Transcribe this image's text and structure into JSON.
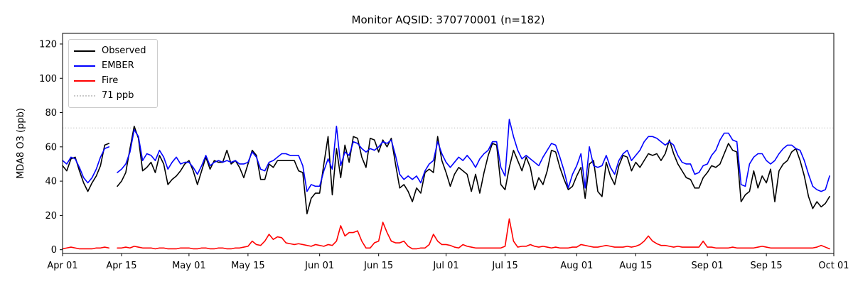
{
  "chart_data": {
    "type": "line",
    "title": "Monitor AQSID: 370770001 (n=182)",
    "xlabel": "",
    "ylabel": "MDA8 O3 (ppb)",
    "x_start_date": "Apr 01",
    "x_end_date": "Sep 30",
    "x_tick_labels": [
      "Apr 01",
      "Apr 15",
      "May 01",
      "May 15",
      "Jun 01",
      "Jun 15",
      "Jul 01",
      "Jul 15",
      "Aug 01",
      "Aug 15",
      "Sep 01",
      "Sep 15",
      "Oct 01"
    ],
    "x_tick_days": [
      0,
      14,
      30,
      44,
      61,
      75,
      91,
      105,
      122,
      136,
      153,
      167,
      183
    ],
    "y_ticks": [
      0,
      20,
      40,
      60,
      80,
      100,
      120
    ],
    "ylim": [
      -2.2,
      126.2
    ],
    "xlim_days": [
      0,
      183
    ],
    "grid": false,
    "legend_position": "upper left",
    "missing_data_day": "Apr 13",
    "threshold": {
      "value": 71,
      "label": "71 ppb",
      "color": "#c9c9c9",
      "style": "dotted"
    },
    "series": [
      {
        "name": "Observed",
        "color": "#000000",
        "values": [
          49,
          46,
          53,
          54,
          46,
          39,
          34,
          39,
          43,
          49,
          61,
          62,
          null,
          37,
          40,
          45,
          59,
          72,
          65,
          46,
          48,
          51,
          45,
          55,
          50,
          38,
          41,
          43,
          46,
          50,
          52,
          46,
          38,
          46,
          54,
          47,
          52,
          51,
          51,
          58,
          50,
          52,
          48,
          42,
          50,
          58,
          55,
          41,
          41,
          50,
          48,
          52,
          52,
          52,
          52,
          52,
          46,
          45,
          21,
          30,
          33,
          33,
          50,
          66,
          32,
          59,
          42,
          61,
          51,
          66,
          65,
          54,
          48,
          65,
          64,
          57,
          64,
          60,
          65,
          50,
          36,
          38,
          34,
          28,
          36,
          33,
          45,
          47,
          45,
          66,
          52,
          45,
          37,
          44,
          48,
          46,
          44,
          34,
          44,
          33,
          45,
          55,
          62,
          61,
          38,
          35,
          48,
          58,
          52,
          46,
          54,
          48,
          35,
          42,
          38,
          46,
          58,
          57,
          48,
          41,
          35,
          37,
          43,
          48,
          30,
          50,
          52,
          34,
          31,
          51,
          43,
          38,
          49,
          55,
          54,
          46,
          51,
          48,
          52,
          56,
          55,
          56,
          52,
          56,
          64,
          56,
          50,
          46,
          42,
          41,
          36,
          36,
          42,
          45,
          49,
          48,
          50,
          56,
          62,
          58,
          57,
          28,
          32,
          34,
          46,
          36,
          43,
          39,
          47,
          28,
          46,
          50,
          52,
          57,
          59,
          52,
          43,
          31,
          24,
          28,
          25,
          27,
          31
        ]
      },
      {
        "name": "EMBER",
        "color": "#0000ff",
        "values": [
          52,
          50,
          54,
          53,
          48,
          42,
          39,
          42,
          47,
          54,
          59,
          60,
          null,
          45,
          47,
          50,
          57,
          70,
          66,
          52,
          56,
          55,
          52,
          58,
          54,
          47,
          51,
          54,
          50,
          51,
          51,
          48,
          44,
          49,
          55,
          49,
          51,
          52,
          51,
          52,
          51,
          52,
          50,
          50,
          51,
          57,
          54,
          47,
          46,
          51,
          52,
          54,
          56,
          56,
          55,
          55,
          55,
          49,
          34,
          38,
          37,
          37,
          46,
          53,
          47,
          72,
          49,
          57,
          55,
          63,
          62,
          59,
          57,
          59,
          58,
          60,
          63,
          62,
          64,
          55,
          44,
          41,
          43,
          41,
          43,
          39,
          46,
          50,
          52,
          63,
          56,
          51,
          48,
          51,
          54,
          52,
          55,
          52,
          48,
          53,
          56,
          58,
          63,
          63,
          48,
          43,
          76,
          66,
          58,
          53,
          55,
          53,
          51,
          49,
          54,
          58,
          62,
          61,
          54,
          46,
          36,
          44,
          49,
          56,
          36,
          60,
          49,
          48,
          49,
          55,
          48,
          44,
          52,
          56,
          58,
          52,
          55,
          58,
          63,
          66,
          66,
          65,
          63,
          61,
          63,
          61,
          55,
          51,
          50,
          50,
          44,
          45,
          49,
          50,
          55,
          58,
          64,
          68,
          68,
          64,
          63,
          38,
          37,
          50,
          54,
          56,
          56,
          52,
          50,
          52,
          56,
          59,
          61,
          61,
          59,
          58,
          52,
          44,
          37,
          35,
          34,
          35,
          43
        ]
      },
      {
        "name": "Fire",
        "color": "#ff0000",
        "values": [
          0.5,
          1,
          1.5,
          1,
          0.5,
          0.5,
          0.5,
          0.5,
          1,
          1,
          1.5,
          1,
          null,
          1,
          1,
          1.5,
          1,
          2,
          1.5,
          1,
          1,
          1,
          0.5,
          1,
          1,
          0.5,
          0.5,
          0.5,
          1,
          1,
          1,
          0.5,
          0.5,
          1,
          1,
          0.5,
          0.5,
          1,
          1,
          0.5,
          0.5,
          1,
          1,
          1.5,
          2,
          5,
          3,
          2.5,
          5,
          9,
          6,
          7.5,
          7,
          4,
          3.5,
          3,
          3.5,
          3,
          2.5,
          2,
          3,
          2.5,
          2,
          3,
          2.5,
          5,
          14,
          8,
          10,
          10,
          11,
          5,
          1,
          1,
          4,
          5,
          16,
          10,
          5,
          4,
          4,
          5,
          2,
          0.5,
          0.5,
          1,
          1,
          3,
          9,
          5,
          3,
          3,
          2.5,
          1.5,
          1,
          3,
          2,
          1.5,
          1,
          1,
          1,
          1,
          1,
          1,
          1,
          2,
          18,
          5,
          1.5,
          2,
          2,
          3,
          2,
          1.5,
          2,
          1.5,
          1,
          1.5,
          1,
          1,
          1,
          1.5,
          1.5,
          3,
          2.5,
          2,
          1.5,
          1.5,
          2,
          2.5,
          2,
          1.5,
          1.5,
          1.5,
          2,
          1.5,
          2,
          3,
          5,
          8,
          5,
          3.5,
          2.5,
          2.5,
          2,
          1.5,
          2,
          1.5,
          1.5,
          1.5,
          1.5,
          1.5,
          5,
          1.5,
          1.5,
          1,
          1,
          1,
          1,
          1.5,
          1,
          1,
          1,
          1,
          1,
          1.5,
          2,
          1.5,
          1,
          1,
          1,
          1,
          1,
          1,
          1,
          1,
          1,
          1,
          1,
          1.5,
          2.5,
          1.5,
          0.5
        ]
      }
    ]
  }
}
